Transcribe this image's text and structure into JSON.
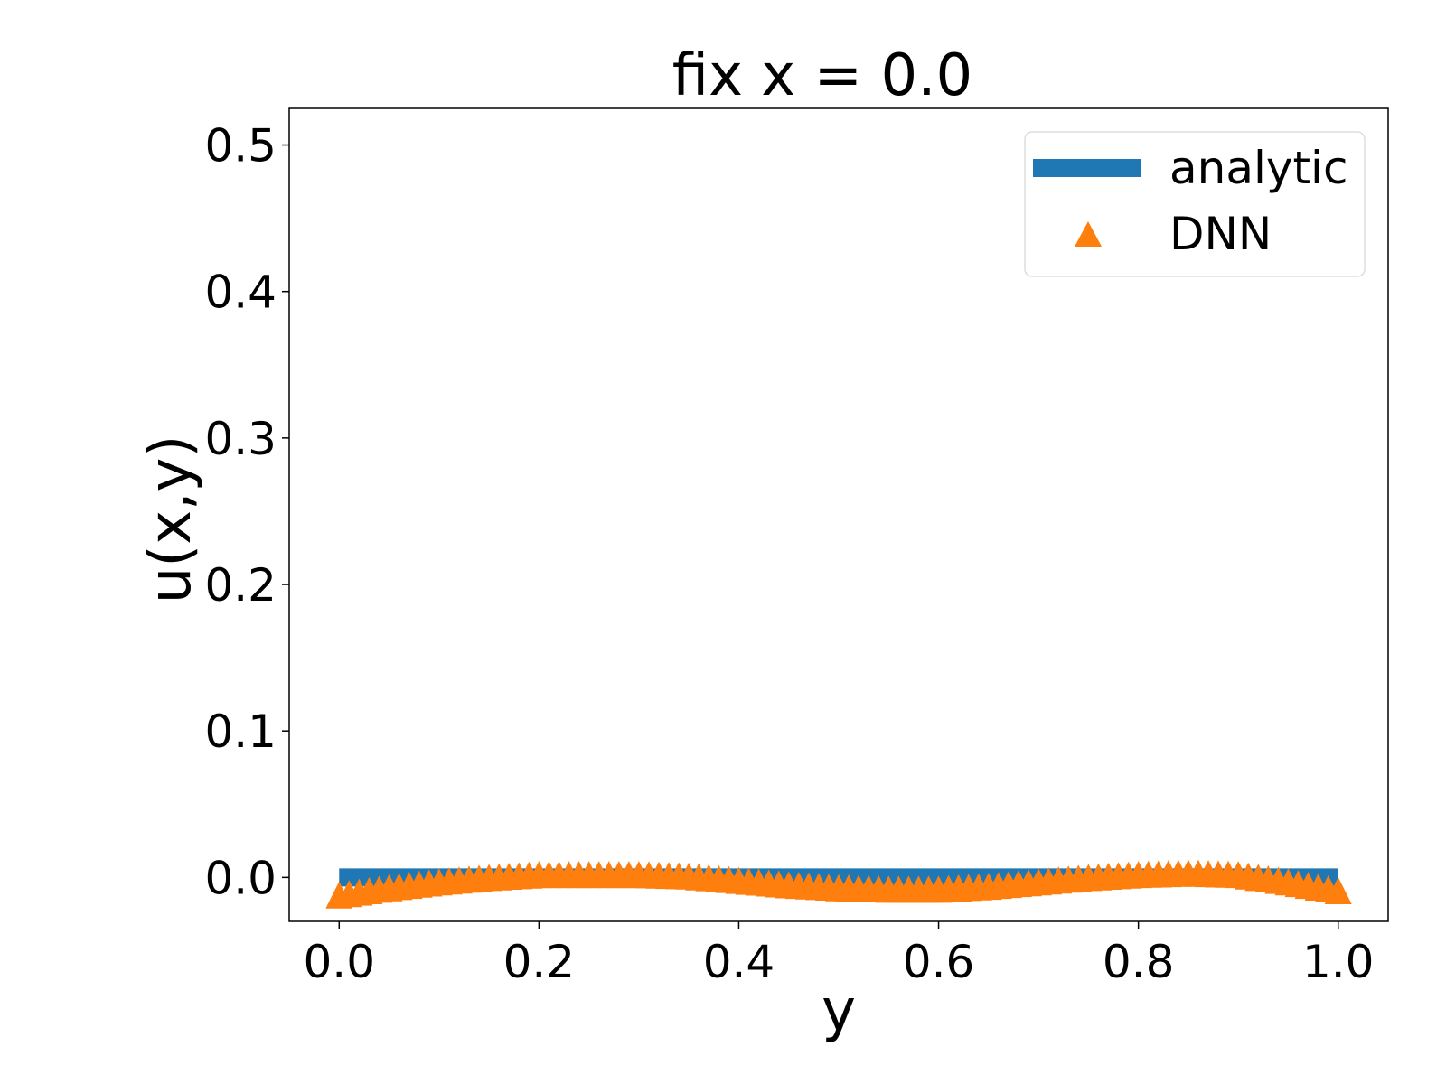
{
  "chart_data": {
    "type": "line",
    "title": "fix x = 0.0",
    "xlabel": "y",
    "ylabel": "u(x,y)",
    "xlim": [
      -0.05,
      1.05
    ],
    "ylim": [
      -0.03,
      0.525
    ],
    "xticks": [
      "0.0",
      "0.2",
      "0.4",
      "0.6",
      "0.8",
      "1.0"
    ],
    "yticks": [
      "0.0",
      "0.1",
      "0.2",
      "0.3",
      "0.4",
      "0.5"
    ],
    "grid": false,
    "legend_position": "top-right",
    "series": [
      {
        "name": "analytic",
        "style": "thick-line",
        "color": "#1f77b4",
        "x": [
          0.0,
          1.0
        ],
        "y": [
          0.0,
          0.0
        ]
      },
      {
        "name": "DNN",
        "style": "triangle-markers",
        "color": "#ff7f0e",
        "x": [
          0.0,
          0.05,
          0.1,
          0.15,
          0.2,
          0.25,
          0.3,
          0.35,
          0.4,
          0.45,
          0.5,
          0.55,
          0.6,
          0.65,
          0.7,
          0.75,
          0.8,
          0.85,
          0.9,
          0.95,
          1.0
        ],
        "y": [
          -0.012,
          -0.007,
          -0.003,
          0.0,
          0.002,
          0.002,
          0.002,
          0.001,
          -0.002,
          -0.005,
          -0.007,
          -0.008,
          -0.008,
          -0.006,
          -0.003,
          0.0,
          0.002,
          0.003,
          0.002,
          -0.003,
          -0.009
        ]
      }
    ]
  }
}
